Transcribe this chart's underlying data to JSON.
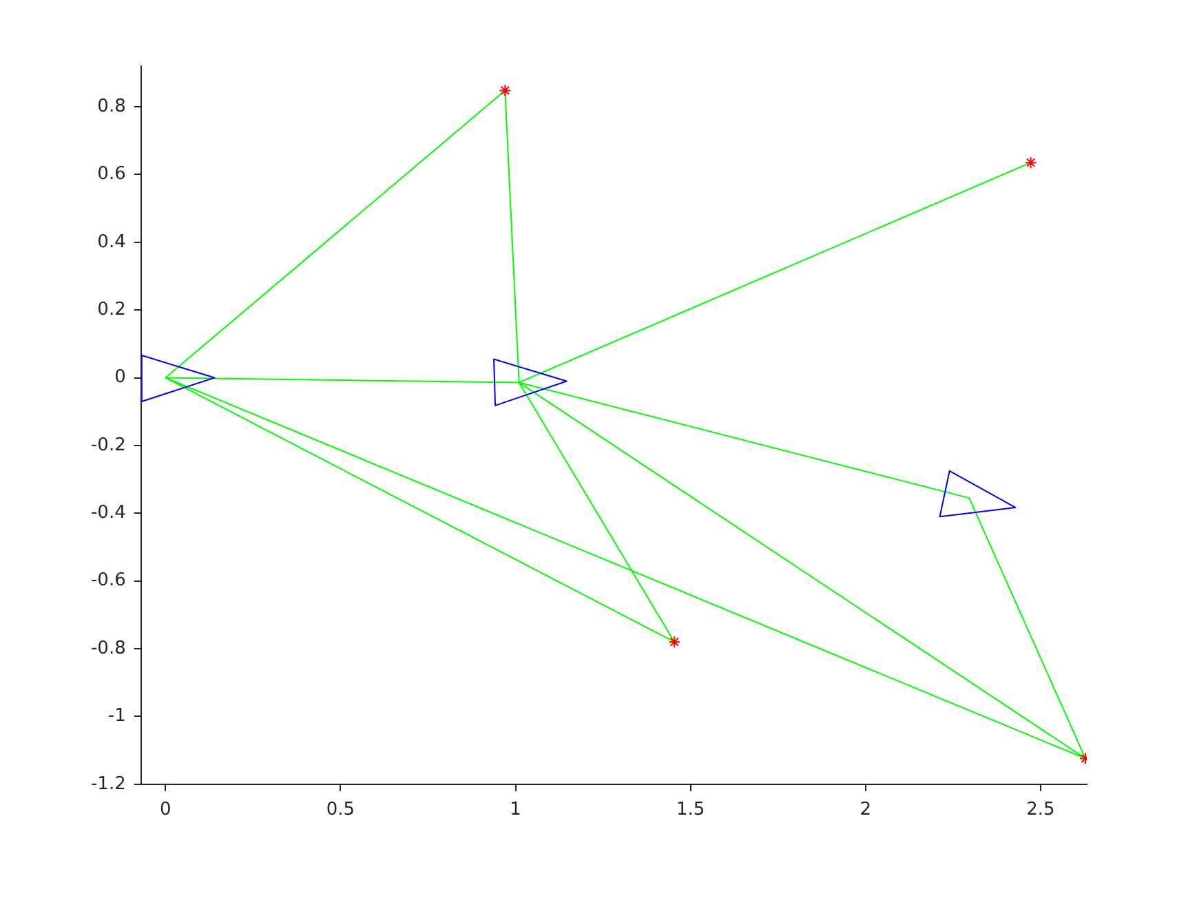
{
  "chart_data": {
    "type": "line",
    "xlim": [
      -0.07,
      2.632
    ],
    "ylim": [
      -1.2,
      0.92
    ],
    "xticks": [
      0,
      0.5,
      1,
      1.5,
      2,
      2.5
    ],
    "yticks": [
      -1.2,
      -1,
      -0.8,
      -0.6,
      -0.4,
      -0.2,
      0,
      0.2,
      0.4,
      0.6,
      0.8
    ],
    "grid": false,
    "legend": false,
    "series": [
      {
        "type": "line",
        "color": "#00ff00",
        "marker": "none",
        "x": [
          2.472,
          1.01,
          0.97,
          0,
          1.01,
          1.454,
          0,
          2.628,
          1.01,
          2.296,
          2.628
        ],
        "values": [
          0.635,
          -0.014,
          0.848,
          0,
          -0.014,
          -0.78,
          0,
          -1.124,
          -0.014,
          -0.355,
          -1.124
        ]
      },
      {
        "type": "line",
        "color": "#0000ff",
        "marker": "none",
        "x": [
          0.14,
          -0.068,
          -0.068,
          0.14,
          -0.068
        ],
        "values": [
          0,
          -0.07,
          0.066,
          0,
          -0.07
        ]
      },
      {
        "type": "line",
        "color": "#0000ff",
        "marker": "none",
        "x": [
          1.146,
          0.942,
          0.938,
          1.146,
          0.942
        ],
        "values": [
          -0.01,
          -0.082,
          0.055,
          -0.01,
          -0.082
        ]
      },
      {
        "type": "line",
        "color": "#0000ff",
        "marker": "none",
        "x": [
          2.428,
          2.212,
          2.24,
          2.428,
          2.212
        ],
        "values": [
          -0.383,
          -0.41,
          -0.275,
          -0.383,
          -0.41
        ]
      },
      {
        "type": "scatter",
        "color": "#ff0000",
        "marker": "cross",
        "x": [
          0.97,
          2.472,
          1.454,
          2.628
        ],
        "values": [
          0.848,
          0.635,
          -0.78,
          -1.124
        ]
      }
    ]
  }
}
